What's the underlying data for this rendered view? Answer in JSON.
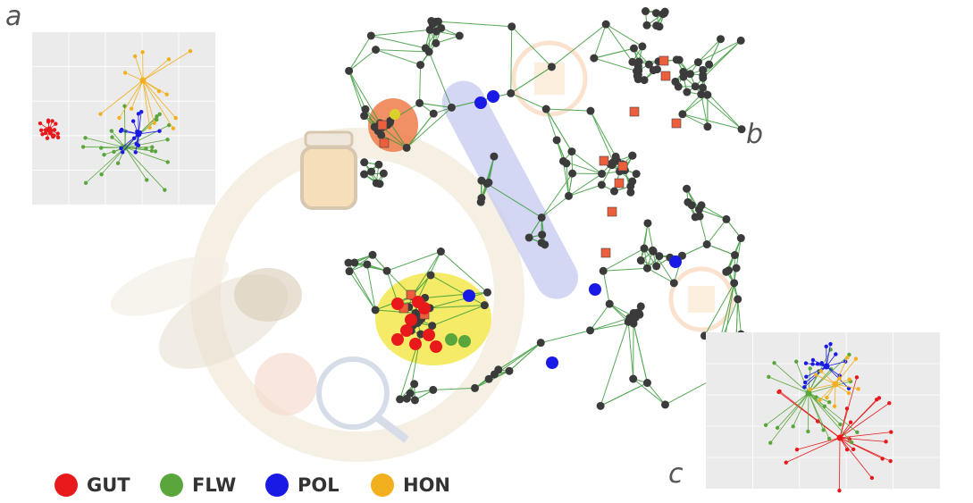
{
  "panels": {
    "a": "a",
    "b": "b",
    "c": "c"
  },
  "legend": [
    {
      "label": "GUT",
      "color": "#e8191b"
    },
    {
      "label": "FLW",
      "color": "#5aa63c"
    },
    {
      "label": "POL",
      "color": "#1a1ae6"
    },
    {
      "label": "HON",
      "color": "#f2b01e"
    }
  ]
}
